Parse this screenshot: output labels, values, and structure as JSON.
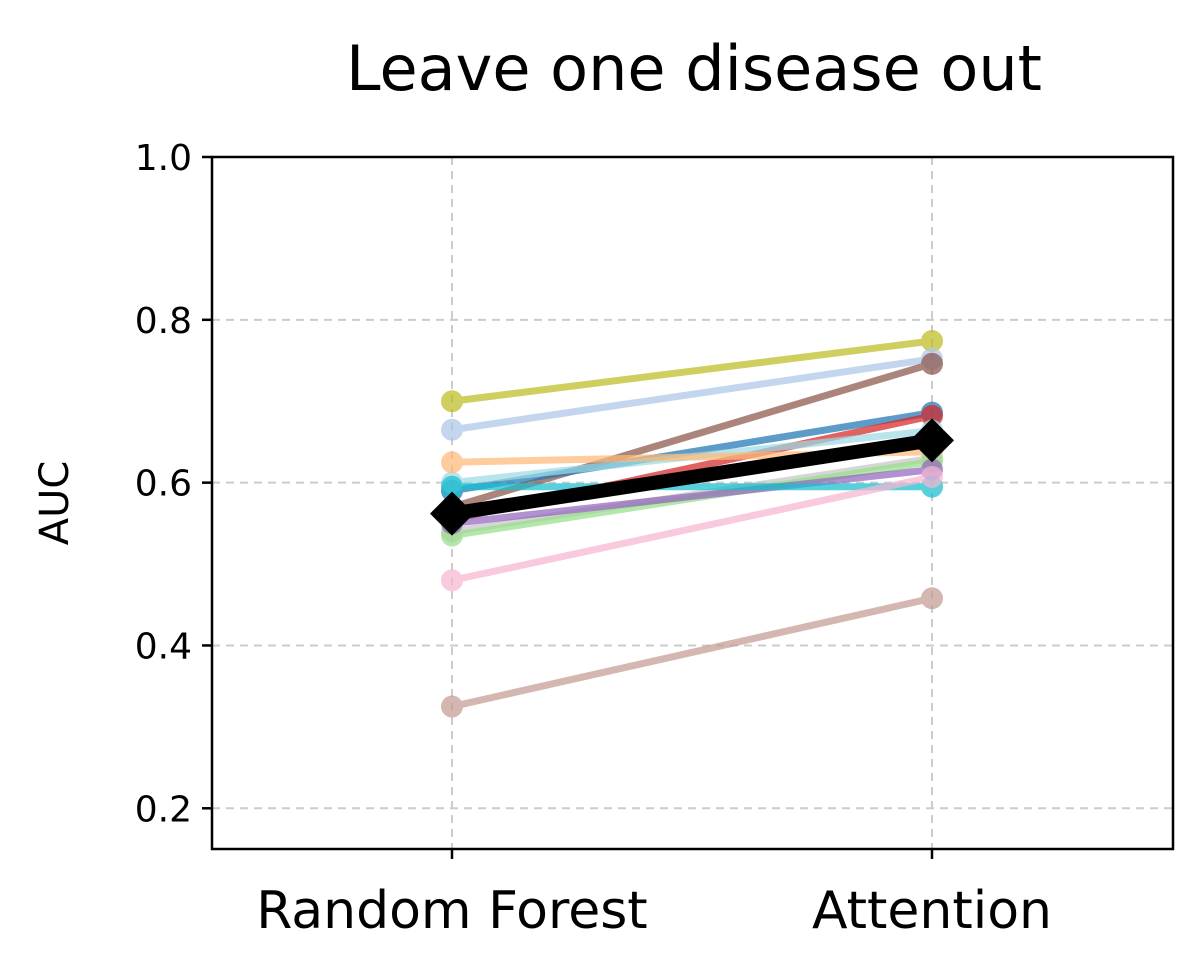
{
  "chart_data": {
    "type": "line",
    "title": "Leave one disease out",
    "xlabel": "",
    "ylabel": "AUC",
    "categories": [
      "Random Forest",
      "Attention"
    ],
    "ylim": [
      0.15,
      1.0
    ],
    "yticks": [
      "0.2",
      "0.4",
      "0.6",
      "0.8",
      "1.0"
    ],
    "ytick_values": [
      0.2,
      0.4,
      0.6,
      0.8,
      1.0
    ],
    "grid": true,
    "legend": "none",
    "series": [
      {
        "values": [
          0.7,
          0.774
        ],
        "color": "#bcbd22"
      },
      {
        "values": [
          0.665,
          0.752
        ],
        "color": "#aec7e8"
      },
      {
        "values": [
          0.57,
          0.746
        ],
        "color": "#8c564b"
      },
      {
        "values": [
          0.59,
          0.686
        ],
        "color": "#1f77b4"
      },
      {
        "values": [
          0.555,
          0.682
        ],
        "color": "#d62728"
      },
      {
        "values": [
          0.6,
          0.664
        ],
        "color": "#9edae5"
      },
      {
        "values": [
          0.625,
          0.638
        ],
        "color": "#ffbb78"
      },
      {
        "values": [
          0.54,
          0.63
        ],
        "color": "#c7c7c7"
      },
      {
        "values": [
          0.535,
          0.626
        ],
        "color": "#98df8a"
      },
      {
        "values": [
          0.55,
          0.616
        ],
        "color": "#9467bd"
      },
      {
        "values": [
          0.595,
          0.595
        ],
        "color": "#17becf"
      },
      {
        "values": [
          0.48,
          0.607
        ],
        "color": "#f7b6d2"
      },
      {
        "values": [
          0.325,
          0.458
        ],
        "color": "#c49c94"
      }
    ],
    "mean": {
      "values": [
        0.562,
        0.652
      ],
      "color": "#000000"
    }
  }
}
